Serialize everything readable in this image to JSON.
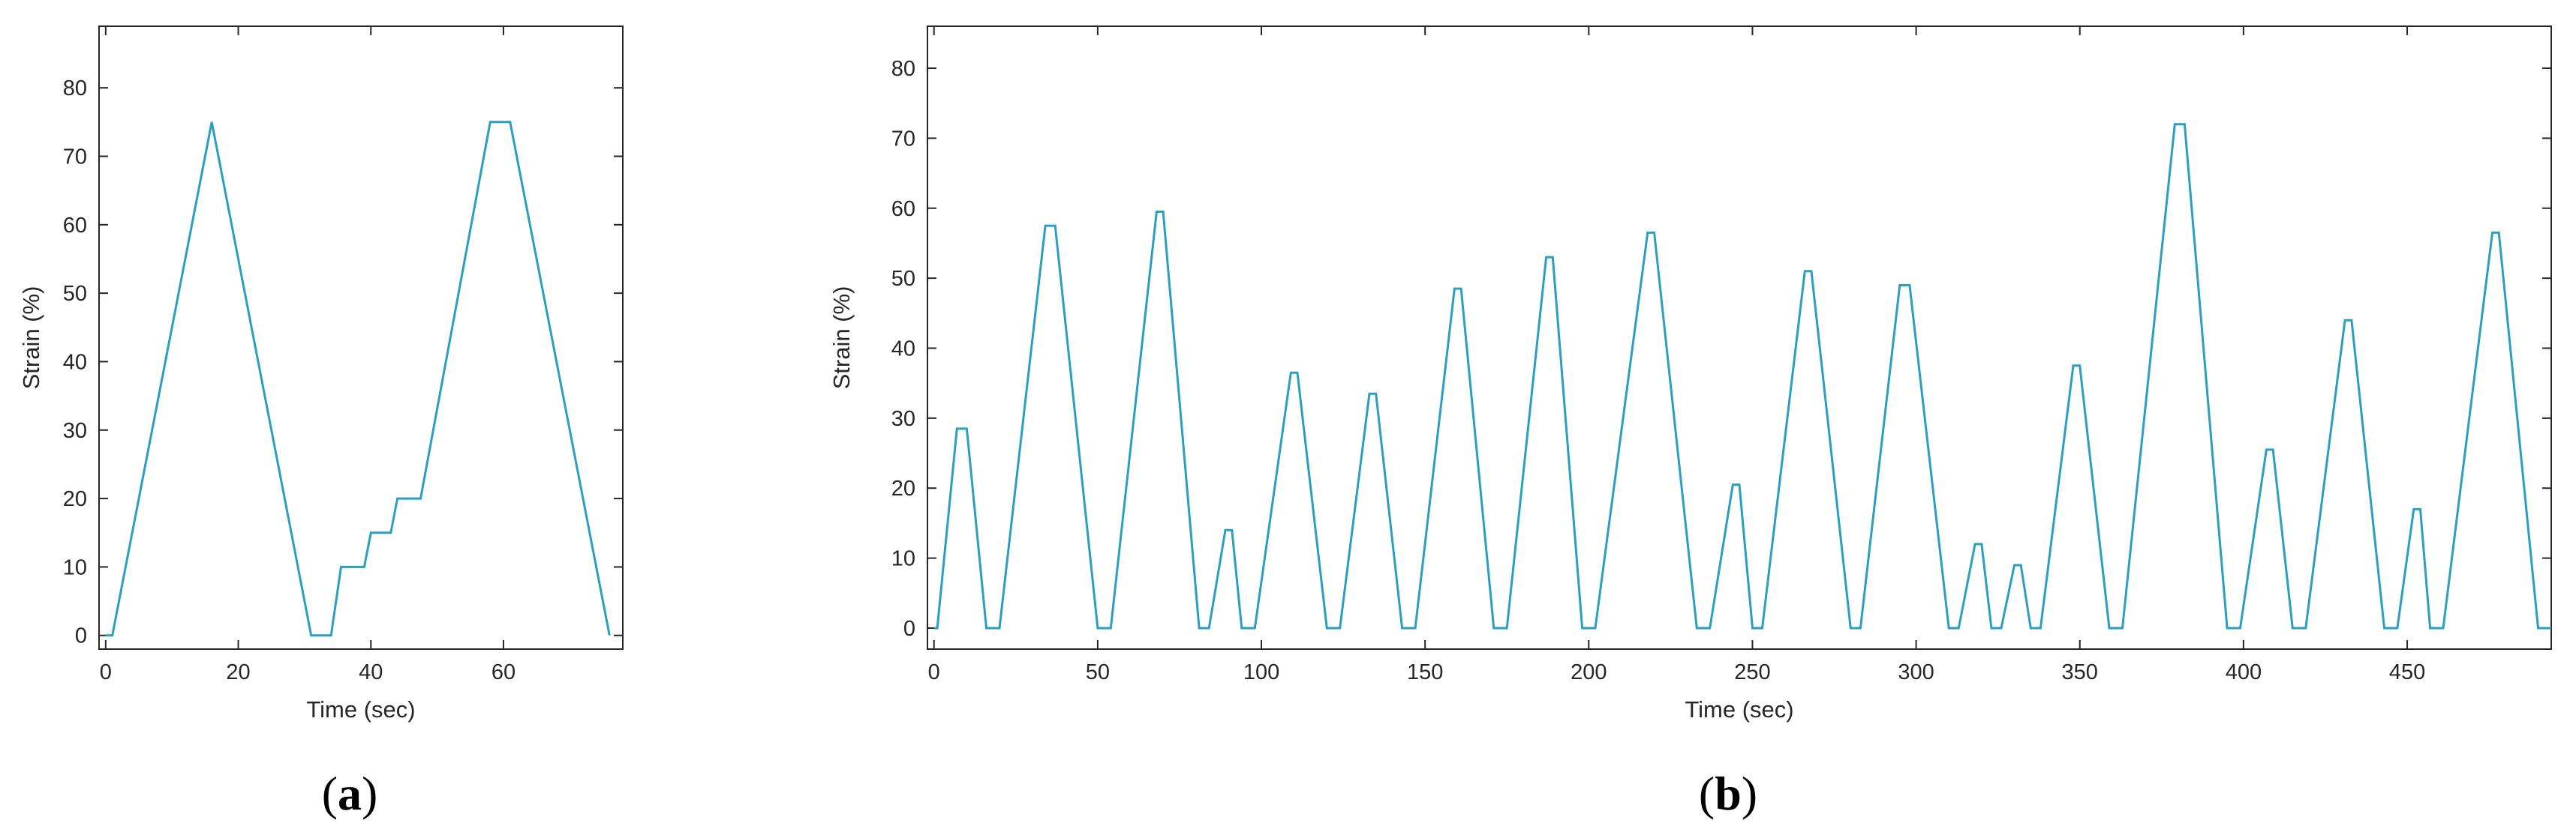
{
  "colors": {
    "line": "#2a9fc0",
    "axis": "#262626",
    "background": "#ffffff"
  },
  "chart_data": [
    {
      "type": "line",
      "panel_label": "a",
      "xlabel": "Time (sec)",
      "ylabel": "Strain (%)",
      "xlim": [
        -1,
        78
      ],
      "ylim": [
        -2,
        89
      ],
      "xticks": [
        0,
        20,
        40,
        60
      ],
      "yticks": [
        0,
        10,
        20,
        30,
        40,
        50,
        60,
        70,
        80
      ],
      "grid": false,
      "series": [
        {
          "x": [
            0,
            1,
            16,
            31,
            34,
            35.5,
            39,
            40,
            43,
            44,
            46.5,
            47.5,
            58,
            61,
            76
          ],
          "y": [
            0,
            0,
            75,
            0,
            0,
            10,
            10,
            15,
            15,
            20,
            20,
            20,
            75,
            75,
            0
          ]
        }
      ]
    },
    {
      "type": "line",
      "panel_label": "b",
      "xlabel": "Time (sec)",
      "ylabel": "Strain (%)",
      "xlim": [
        -2,
        494
      ],
      "ylim": [
        -3,
        86
      ],
      "xticks": [
        0,
        50,
        100,
        150,
        200,
        250,
        300,
        350,
        400,
        450
      ],
      "yticks": [
        0,
        10,
        20,
        30,
        40,
        50,
        60,
        70,
        80
      ],
      "grid": false,
      "series": [
        {
          "x": [
            0,
            1,
            7,
            10,
            16,
            20,
            34,
            37,
            50,
            54,
            68,
            70,
            81,
            84,
            89,
            91,
            94,
            98,
            109,
            111,
            120,
            124,
            133,
            135,
            143,
            147,
            159,
            161,
            171,
            175,
            187,
            189,
            198,
            202,
            218,
            220,
            233,
            237,
            244,
            246,
            250,
            253,
            266,
            268,
            280,
            283,
            295,
            298,
            310,
            313,
            318,
            320,
            323,
            326,
            330,
            332,
            335,
            338,
            348,
            350,
            359,
            363,
            379,
            382,
            395,
            399,
            407,
            409,
            415,
            419,
            431,
            433,
            443,
            447,
            452,
            454,
            457,
            461,
            476,
            478,
            490,
            494
          ],
          "y": [
            0,
            0,
            28.5,
            28.5,
            0,
            0,
            57.5,
            57.5,
            0,
            0,
            59.5,
            59.5,
            0,
            0,
            14,
            14,
            0,
            0,
            36.5,
            36.5,
            0,
            0,
            33.5,
            33.5,
            0,
            0,
            48.5,
            48.5,
            0,
            0,
            53,
            53,
            0,
            0,
            56.5,
            56.5,
            0,
            0,
            20.5,
            20.5,
            0,
            0,
            51,
            51,
            0,
            0,
            49,
            49,
            0,
            0,
            12,
            12,
            0,
            0,
            9,
            9,
            0,
            0,
            37.5,
            37.5,
            0,
            0,
            72,
            72,
            0,
            0,
            25.5,
            25.5,
            0,
            0,
            44,
            44,
            0,
            0,
            17,
            17,
            0,
            0,
            56.5,
            56.5,
            0,
            0
          ]
        }
      ]
    }
  ]
}
